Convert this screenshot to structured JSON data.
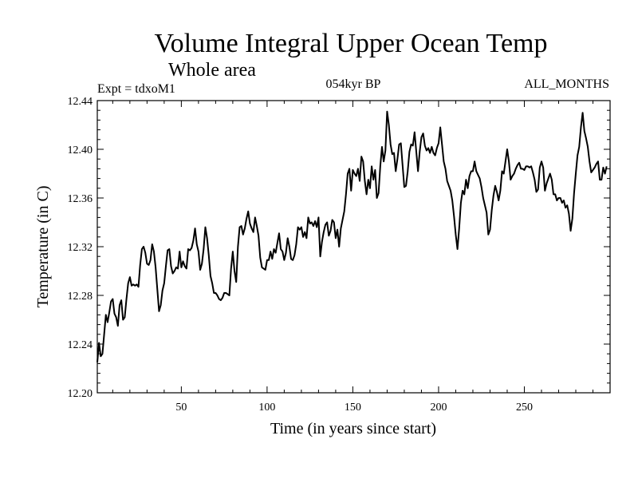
{
  "chart_data": {
    "type": "line",
    "title": "Volume Integral Upper Ocean Temp",
    "subtitle": "Whole area",
    "header_left": "Expt = tdxoM1",
    "header_center": "054kyr BP",
    "header_right": "ALL_MONTHS",
    "xlabel": "Time (in years since start)",
    "ylabel": "Temperature (in C)",
    "xlim": [
      1,
      300
    ],
    "ylim": [
      12.2,
      12.44
    ],
    "x_ticks": [
      50,
      100,
      150,
      200,
      250
    ],
    "x_tick_labels": [
      "50",
      "100",
      "150",
      "200",
      "250"
    ],
    "y_ticks": [
      12.2,
      12.24,
      12.28,
      12.32,
      12.36,
      12.4,
      12.44
    ],
    "y_tick_labels": [
      "12.20",
      "12.24",
      "12.28",
      "12.32",
      "12.36",
      "12.40",
      "12.44"
    ],
    "x_minor_step": 10,
    "y_minor_step": 0.008,
    "grid": false,
    "series": [
      {
        "name": "Volume Integral Upper Ocean Temp",
        "x_start": 1,
        "x_step": 1,
        "values": [
          12.225,
          12.241,
          12.23,
          12.232,
          12.248,
          12.264,
          12.258,
          12.266,
          12.275,
          12.277,
          12.265,
          12.262,
          12.255,
          12.272,
          12.276,
          12.26,
          12.262,
          12.277,
          12.29,
          12.295,
          12.288,
          12.289,
          12.288,
          12.289,
          12.287,
          12.305,
          12.318,
          12.32,
          12.315,
          12.306,
          12.305,
          12.309,
          12.322,
          12.316,
          12.303,
          12.285,
          12.267,
          12.272,
          12.284,
          12.29,
          12.304,
          12.317,
          12.318,
          12.304,
          12.298,
          12.3,
          12.303,
          12.302,
          12.316,
          12.303,
          12.308,
          12.304,
          12.302,
          12.318,
          12.317,
          12.319,
          12.325,
          12.335,
          12.322,
          12.316,
          12.301,
          12.306,
          12.318,
          12.336,
          12.327,
          12.313,
          12.296,
          12.29,
          12.282,
          12.282,
          12.28,
          12.277,
          12.276,
          12.278,
          12.282,
          12.282,
          12.281,
          12.28,
          12.302,
          12.316,
          12.3,
          12.291,
          12.32,
          12.336,
          12.337,
          12.33,
          12.335,
          12.343,
          12.349,
          12.339,
          12.335,
          12.332,
          12.344,
          12.337,
          12.329,
          12.311,
          12.303,
          12.302,
          12.301,
          12.309,
          12.309,
          12.316,
          12.31,
          12.318,
          12.315,
          12.323,
          12.331,
          12.318,
          12.316,
          12.309,
          12.315,
          12.327,
          12.32,
          12.31,
          12.309,
          12.313,
          12.322,
          12.336,
          12.334,
          12.336,
          12.328,
          12.332,
          12.327,
          12.344,
          12.339,
          12.34,
          12.337,
          12.341,
          12.336,
          12.344,
          12.312,
          12.324,
          12.332,
          12.338,
          12.34,
          12.329,
          12.333,
          12.342,
          12.34,
          12.327,
          12.334,
          12.32,
          12.335,
          12.342,
          12.349,
          12.363,
          12.38,
          12.384,
          12.366,
          12.383,
          12.38,
          12.378,
          12.384,
          12.374,
          12.394,
          12.39,
          12.374,
          12.363,
          12.375,
          12.368,
          12.386,
          12.375,
          12.383,
          12.36,
          12.364,
          12.386,
          12.402,
          12.39,
          12.399,
          12.431,
          12.42,
          12.404,
          12.396,
          12.397,
          12.382,
          12.392,
          12.404,
          12.405,
          12.387,
          12.369,
          12.37,
          12.382,
          12.398,
          12.404,
          12.403,
          12.414,
          12.398,
          12.382,
          12.398,
          12.41,
          12.413,
          12.403,
          12.399,
          12.401,
          12.397,
          12.402,
          12.397,
          12.395,
          12.401,
          12.405,
          12.418,
          12.404,
          12.39,
          12.384,
          12.374,
          12.37,
          12.366,
          12.358,
          12.345,
          12.33,
          12.318,
          12.335,
          12.356,
          12.366,
          12.363,
          12.375,
          12.368,
          12.378,
          12.382,
          12.382,
          12.39,
          12.382,
          12.379,
          12.376,
          12.369,
          12.36,
          12.354,
          12.348,
          12.33,
          12.334,
          12.35,
          12.362,
          12.37,
          12.365,
          12.358,
          12.366,
          12.382,
          12.38,
          12.39,
          12.4,
          12.39,
          12.375,
          12.378,
          12.38,
          12.384,
          12.387,
          12.389,
          12.384,
          12.384,
          12.383,
          12.386,
          12.386,
          12.385,
          12.386,
          12.381,
          12.375,
          12.365,
          12.367,
          12.385,
          12.39,
          12.385,
          12.366,
          12.372,
          12.376,
          12.38,
          12.375,
          12.363,
          12.363,
          12.358,
          12.36,
          12.36,
          12.356,
          12.358,
          12.352,
          12.354,
          12.347,
          12.333,
          12.343,
          12.364,
          12.38,
          12.395,
          12.402,
          12.418,
          12.43,
          12.415,
          12.409,
          12.402,
          12.39,
          12.381,
          12.383,
          12.385,
          12.388,
          12.39,
          12.375,
          12.375,
          12.385,
          12.38,
          12.386
        ]
      }
    ]
  }
}
